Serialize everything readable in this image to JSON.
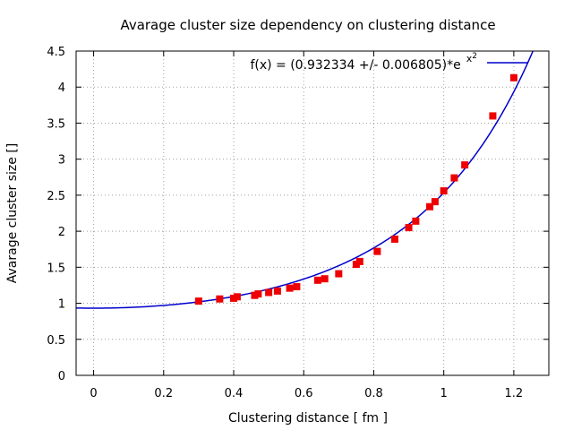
{
  "chart_data": {
    "type": "scatter",
    "title": "Avarage cluster size dependency on clustering distance",
    "xlabel": "Clustering distance [ fm ]",
    "ylabel": "Avarage cluster size []",
    "xlim": [
      -0.05,
      1.3
    ],
    "ylim": [
      0,
      4.5
    ],
    "xticks": [
      "0",
      "0.2",
      "0.4",
      "0.6",
      "0.8",
      "1",
      "1.2"
    ],
    "yticks": [
      "0",
      "0.5",
      "1",
      "1.5",
      "2",
      "2.5",
      "3",
      "3.5",
      "4",
      "4.5"
    ],
    "xtick_values": [
      0,
      0.2,
      0.4,
      0.6,
      0.8,
      1.0,
      1.2
    ],
    "ytick_values": [
      0,
      0.5,
      1,
      1.5,
      2,
      2.5,
      3,
      3.5,
      4,
      4.5
    ],
    "grid": true,
    "legend": "top-right",
    "fit": {
      "label_main": "f(x) = (0.932334 +/- 0.006805)*e",
      "label_exp": "x",
      "label_exp2": "2",
      "coefficient": 0.932334,
      "color": "#0000cc"
    },
    "points": {
      "color": "#ee0000",
      "x": [
        0.3,
        0.36,
        0.4,
        0.41,
        0.46,
        0.47,
        0.5,
        0.525,
        0.56,
        0.58,
        0.64,
        0.66,
        0.7,
        0.75,
        0.76,
        0.81,
        0.86,
        0.9,
        0.92,
        0.96,
        0.975,
        1.0,
        1.03,
        1.06,
        1.14,
        1.2
      ],
      "y": [
        1.03,
        1.06,
        1.07,
        1.09,
        1.11,
        1.13,
        1.15,
        1.17,
        1.21,
        1.23,
        1.32,
        1.34,
        1.41,
        1.54,
        1.58,
        1.72,
        1.89,
        2.05,
        2.14,
        2.34,
        2.41,
        2.56,
        2.74,
        2.92,
        3.6,
        4.13
      ]
    }
  }
}
